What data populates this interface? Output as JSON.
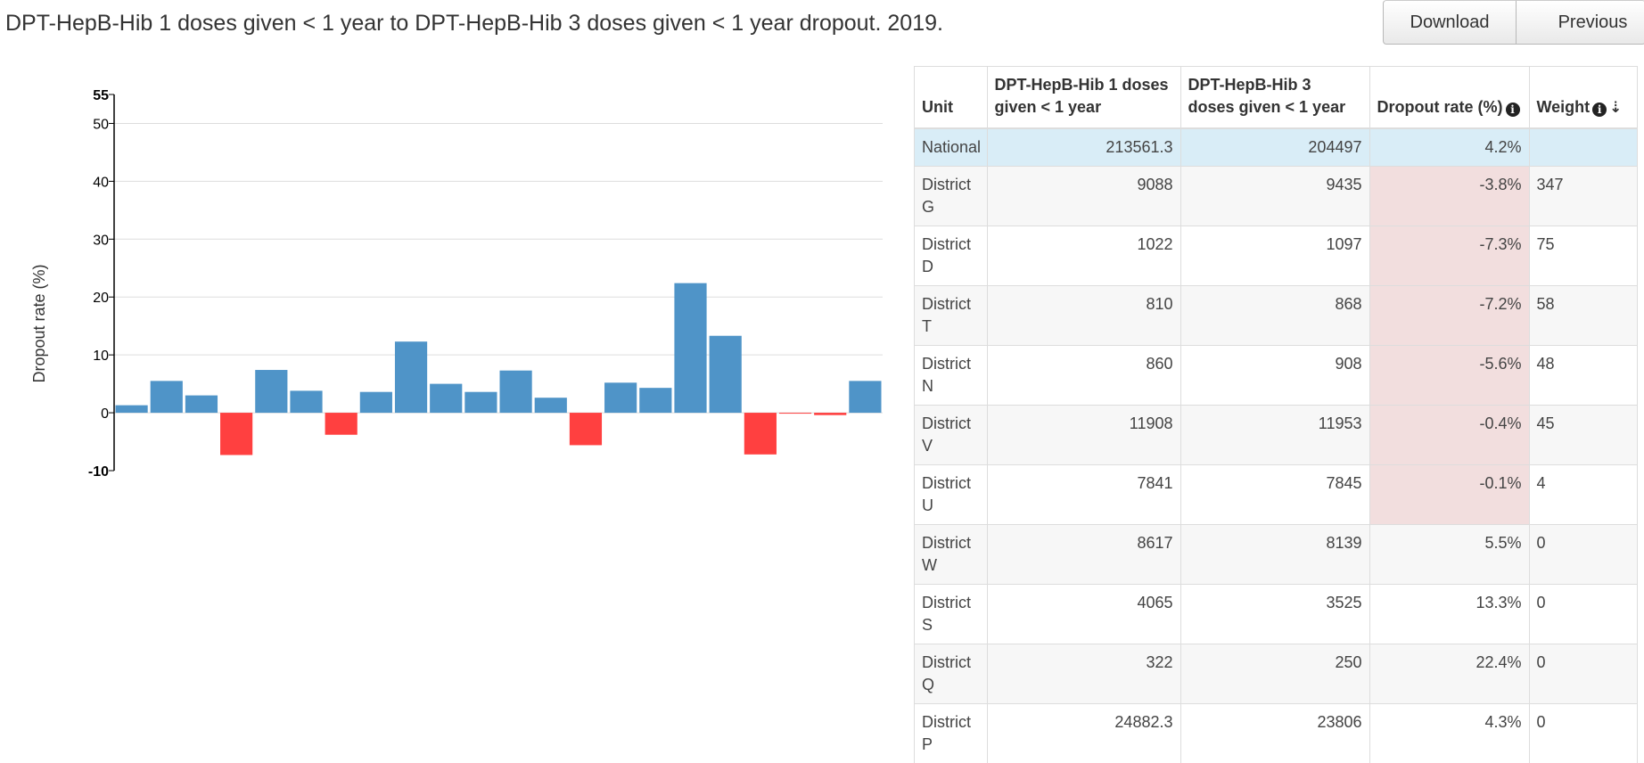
{
  "title": "DPT-HepB-Hib 1 doses given < 1 year to DPT-HepB-Hib 3 doses given < 1 year dropout. 2019.",
  "buttons": {
    "download": "Download",
    "previous": "Previous"
  },
  "colors": {
    "positive": "#4f94c8",
    "negative": "#ff4040",
    "national_row": "#d9edf7",
    "negative_cell": "#f2dede"
  },
  "chart_data": {
    "type": "bar",
    "ylabel": "Dropout rate (%)",
    "xlabel": "",
    "ylim": [
      -10,
      55
    ],
    "yticks": [
      -10,
      0,
      10,
      20,
      30,
      40,
      50,
      55
    ],
    "grid": true,
    "values": [
      1.3,
      5.5,
      3.0,
      -7.3,
      7.4,
      3.8,
      -3.8,
      3.6,
      12.3,
      5.0,
      3.6,
      7.3,
      2.6,
      -5.6,
      5.2,
      4.3,
      22.4,
      13.3,
      -7.2,
      -0.1,
      -0.4,
      5.5
    ]
  },
  "table": {
    "headers": {
      "unit": "Unit",
      "dose1": "DPT-HepB-Hib 1 doses given < 1 year",
      "dose3": "DPT-HepB-Hib 3 doses given < 1 year",
      "rate": "Dropout rate (%)",
      "weight": "Weight"
    },
    "rows": [
      {
        "unit": "National",
        "dose1": "213561.3",
        "dose3": "204497",
        "rate": "4.2%",
        "weight": ""
      },
      {
        "unit": "District G",
        "dose1": "9088",
        "dose3": "9435",
        "rate": "-3.8%",
        "weight": "347"
      },
      {
        "unit": "District D",
        "dose1": "1022",
        "dose3": "1097",
        "rate": "-7.3%",
        "weight": "75"
      },
      {
        "unit": "District T",
        "dose1": "810",
        "dose3": "868",
        "rate": "-7.2%",
        "weight": "58"
      },
      {
        "unit": "District N",
        "dose1": "860",
        "dose3": "908",
        "rate": "-5.6%",
        "weight": "48"
      },
      {
        "unit": "District V",
        "dose1": "11908",
        "dose3": "11953",
        "rate": "-0.4%",
        "weight": "45"
      },
      {
        "unit": "District U",
        "dose1": "7841",
        "dose3": "7845",
        "rate": "-0.1%",
        "weight": "4"
      },
      {
        "unit": "District W",
        "dose1": "8617",
        "dose3": "8139",
        "rate": "5.5%",
        "weight": "0"
      },
      {
        "unit": "District S",
        "dose1": "4065",
        "dose3": "3525",
        "rate": "13.3%",
        "weight": "0"
      },
      {
        "unit": "District Q",
        "dose1": "322",
        "dose3": "250",
        "rate": "22.4%",
        "weight": "0"
      },
      {
        "unit": "District P",
        "dose1": "24882.3",
        "dose3": "23806",
        "rate": "4.3%",
        "weight": "0"
      }
    ]
  },
  "icons": {
    "info": "info-circle-icon",
    "sort": "sort-descending-icon"
  }
}
